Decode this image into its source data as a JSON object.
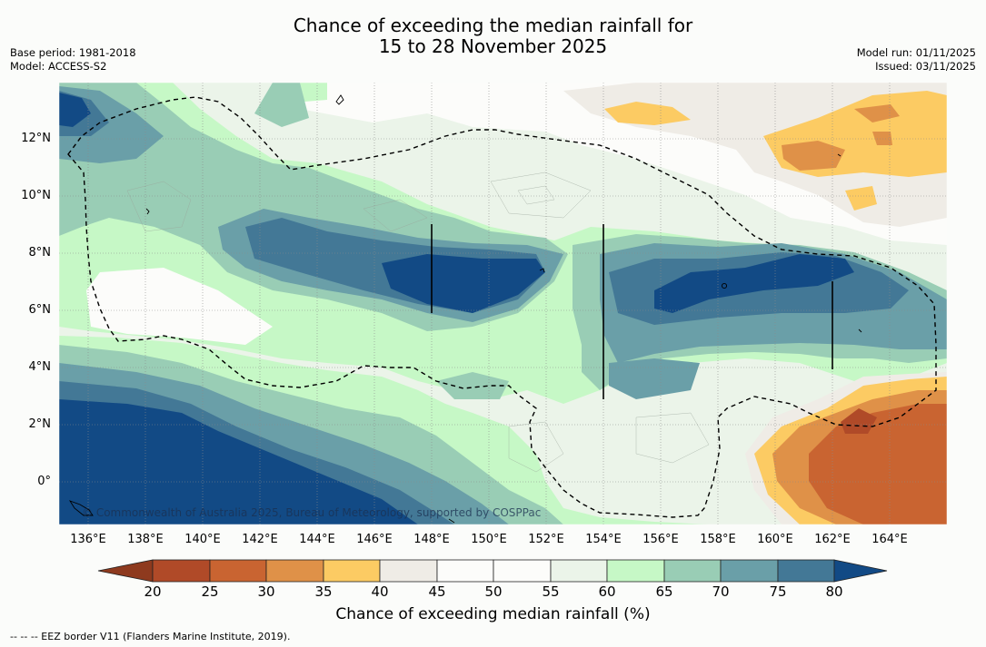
{
  "title": {
    "line1": "Chance of exceeding the median rainfall for",
    "line2": "15 to 28 November 2025"
  },
  "meta_left": {
    "base_period": "Base period: 1981-2018",
    "model": "Model: ACCESS-S2"
  },
  "meta_right": {
    "model_run": "Model run: 01/11/2025",
    "issued": "Issued: 03/11/2025"
  },
  "copyright": "© Commonwealth of Australia 2025, Bureau of Meteorology, supported by COSPPac",
  "x_ticks": [
    "136°E",
    "138°E",
    "140°E",
    "142°E",
    "144°E",
    "146°E",
    "148°E",
    "150°E",
    "152°E",
    "154°E",
    "156°E",
    "158°E",
    "160°E",
    "162°E",
    "164°E"
  ],
  "y_ticks": [
    "12°N",
    "10°N",
    "8°N",
    "6°N",
    "4°N",
    "2°N",
    "0°"
  ],
  "colorbar": {
    "ticks": [
      "20",
      "25",
      "30",
      "35",
      "40",
      "45",
      "50",
      "55",
      "60",
      "65",
      "70",
      "75",
      "80"
    ],
    "label": "Chance of exceeding median rainfall (%)",
    "colors": [
      "#8e3a1e",
      "#b04a28",
      "#c96431",
      "#df9148",
      "#fccb63",
      "#efece6",
      "#fcfcfa",
      "#fcfcfa",
      "#ebf4e9",
      "#c6f8c6",
      "#99cdb5",
      "#6a9fa8",
      "#437896",
      "#124a85"
    ]
  },
  "footnote": "-- -- -- EEZ border V11 (Flanders Marine Institute, 2019)."
}
